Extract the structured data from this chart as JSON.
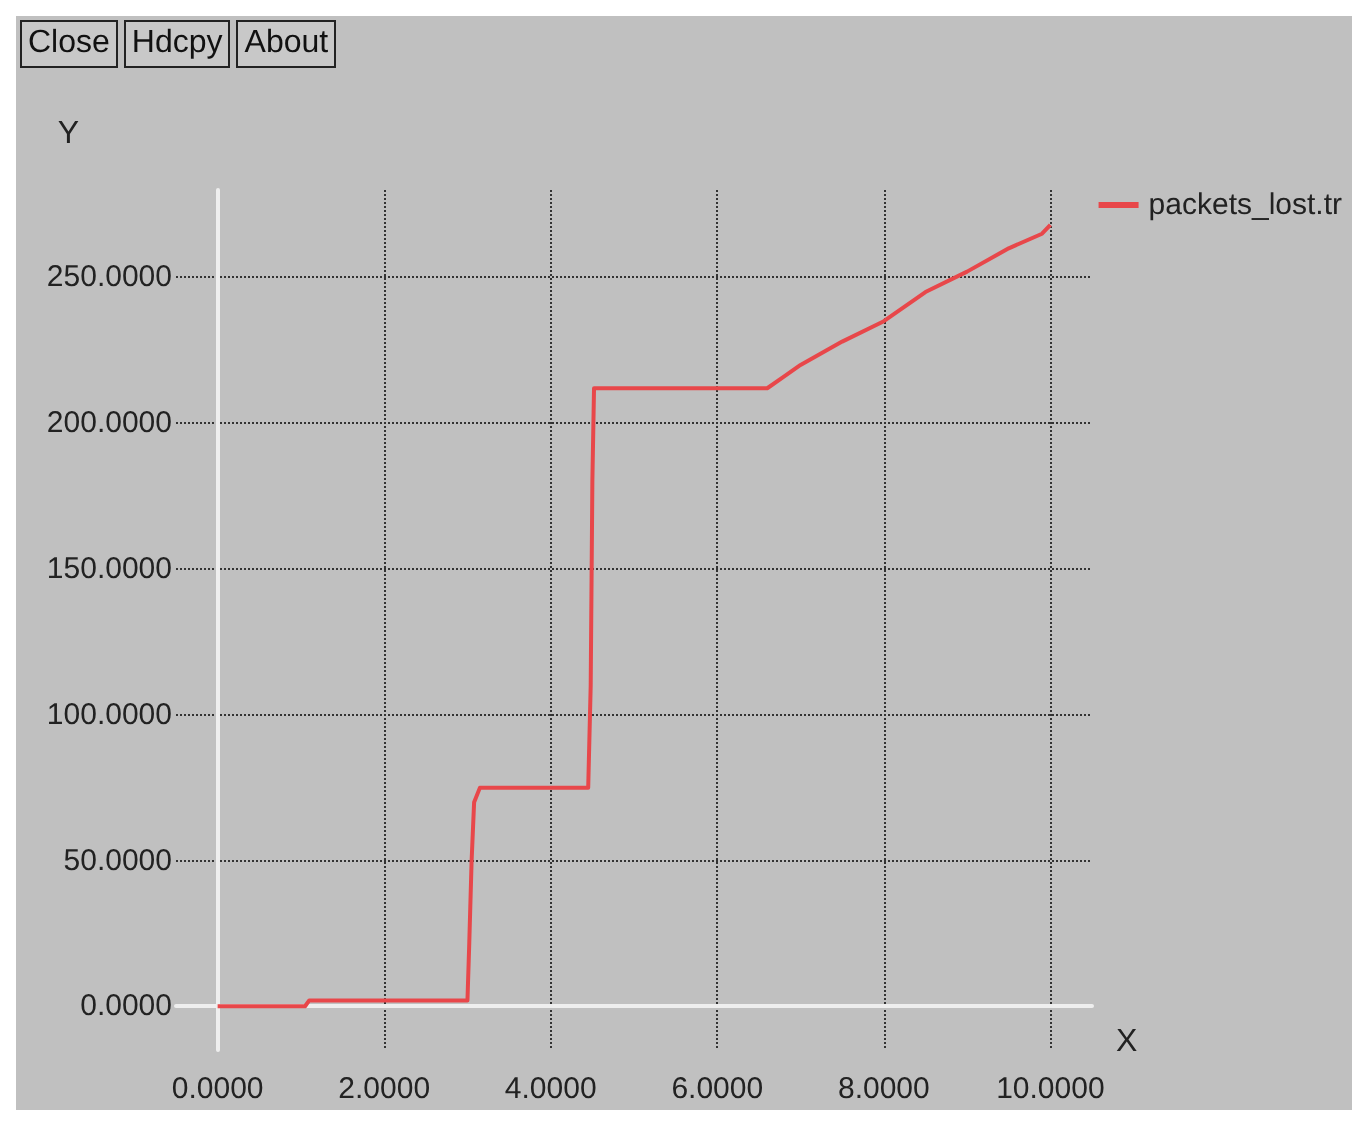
{
  "chart_data": {
    "type": "line",
    "xlabel": "X",
    "ylabel": "Y",
    "annotations": [
      "Close",
      "Hdcpy",
      "About"
    ],
    "x": [
      0,
      1.05,
      1.1,
      3.0,
      3.02,
      3.05,
      3.08,
      3.15,
      4.45,
      4.48,
      4.5,
      4.52,
      6.6,
      6.8,
      7.0,
      7.5,
      8.0,
      8.5,
      9.0,
      9.5,
      9.9,
      10
    ],
    "series": [
      {
        "name": "packets_lost.tr",
        "color": "#e8474a",
        "values": [
          0,
          0,
          2,
          2,
          20,
          50,
          70,
          75,
          75,
          110,
          180,
          212,
          212,
          216,
          220,
          228,
          235,
          245,
          252,
          260,
          265,
          268
        ]
      }
    ],
    "xlim": [
      -0.5,
      10.5
    ],
    "ylim": [
      -15,
      280
    ],
    "xticks": [
      {
        "value": 0,
        "label": "0.0000"
      },
      {
        "value": 2,
        "label": "2.0000"
      },
      {
        "value": 4,
        "label": "4.0000"
      },
      {
        "value": 6,
        "label": "6.0000"
      },
      {
        "value": 8,
        "label": "8.0000"
      },
      {
        "value": 10,
        "label": "10.0000"
      }
    ],
    "yticks": [
      {
        "value": 0,
        "label": "0.0000"
      },
      {
        "value": 50,
        "label": "50.0000"
      },
      {
        "value": 100,
        "label": "100.0000"
      },
      {
        "value": 150,
        "label": "150.0000"
      },
      {
        "value": 200,
        "label": "200.0000"
      },
      {
        "value": 250,
        "label": "250.0000"
      }
    ],
    "grid": true,
    "legend": "top right",
    "marker": "none",
    "line_style": "solid"
  }
}
